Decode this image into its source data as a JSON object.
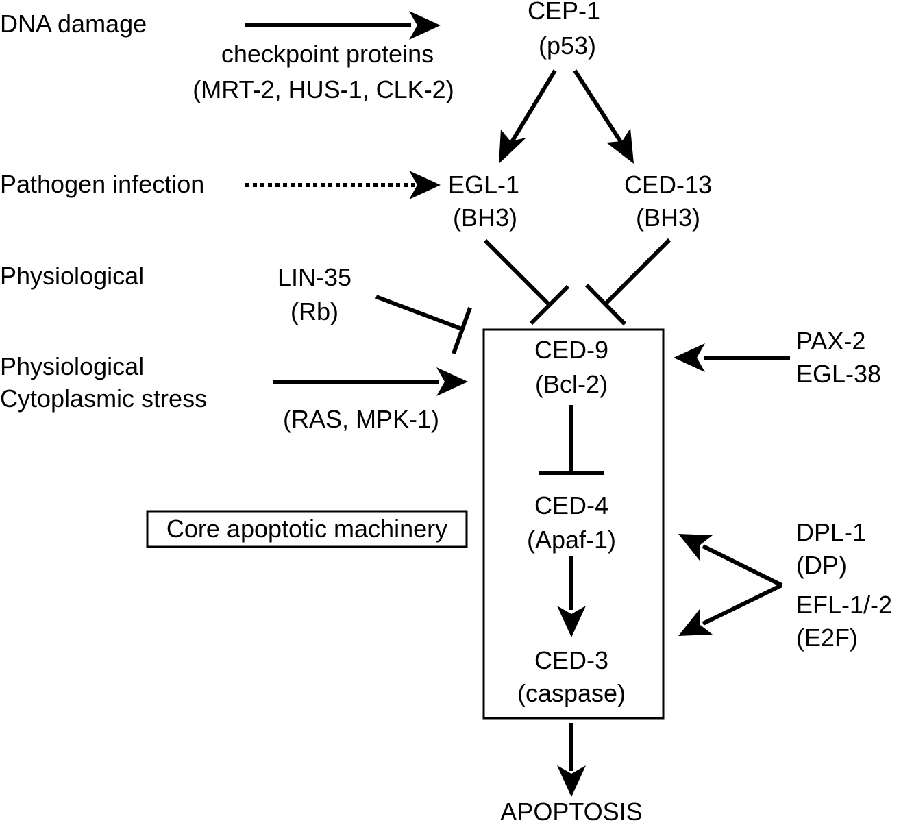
{
  "inputs": {
    "dna_damage": "DNA damage",
    "pathogen_infection": "Pathogen infection",
    "physiological_1": "Physiological",
    "physiological_2": "Physiological",
    "cytoplasmic_stress": "Cytoplasmic stress"
  },
  "edge_labels": {
    "checkpoint_1": "checkpoint proteins",
    "checkpoint_2": "(MRT-2, HUS-1, CLK-2)",
    "ras_mpk": "(RAS, MPK-1)"
  },
  "nodes": {
    "cep1": {
      "name": "CEP-1",
      "sub": "(p53)"
    },
    "egl1": {
      "name": "EGL-1",
      "sub": "(BH3)"
    },
    "ced13": {
      "name": "CED-13",
      "sub": "(BH3)"
    },
    "lin35": {
      "name": "LIN-35",
      "sub": "(Rb)"
    },
    "ced9": {
      "name": "CED-9",
      "sub": "(Bcl-2)"
    },
    "ced4": {
      "name": "CED-4",
      "sub": "(Apaf-1)"
    },
    "ced3": {
      "name": "CED-3",
      "sub": "(caspase)"
    },
    "pax2": {
      "name": "PAX-2",
      "sub": "EGL-38"
    },
    "dpl1": {
      "name": "DPL-1",
      "sub": "(DP)"
    },
    "efl": {
      "name": "EFL-1/-2",
      "sub": "(E2F)"
    },
    "apoptosis": {
      "name": "APOPTOSIS"
    }
  },
  "core_label": "Core apoptotic machinery"
}
